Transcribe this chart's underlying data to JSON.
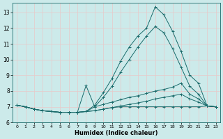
{
  "xlabel": "Humidex (Indice chaleur)",
  "bg_color": "#cceaea",
  "grid_color": "#b8d8d8",
  "line_color": "#1a6b6b",
  "xlim": [
    -0.5,
    23.5
  ],
  "ylim": [
    6,
    13.6
  ],
  "yticks": [
    6,
    7,
    8,
    9,
    10,
    11,
    12,
    13
  ],
  "xticks": [
    0,
    1,
    2,
    3,
    4,
    5,
    6,
    7,
    8,
    9,
    10,
    11,
    12,
    13,
    14,
    15,
    16,
    17,
    18,
    19,
    20,
    21,
    22,
    23
  ],
  "curves": [
    {
      "x": [
        0,
        1,
        2,
        3,
        4,
        5,
        6,
        7,
        8,
        9,
        10,
        11,
        12,
        13,
        14,
        15,
        16,
        17,
        18,
        19,
        20,
        21,
        22,
        23
      ],
      "y": [
        7.1,
        7.0,
        6.85,
        6.75,
        6.7,
        6.65,
        6.65,
        6.65,
        6.7,
        7.1,
        7.9,
        8.8,
        9.9,
        10.8,
        11.5,
        12.0,
        13.35,
        12.85,
        11.8,
        10.5,
        9.0,
        8.5,
        7.05,
        7.0
      ]
    },
    {
      "x": [
        0,
        1,
        2,
        3,
        4,
        5,
        6,
        7,
        8,
        9,
        10,
        11,
        12,
        13,
        14,
        15,
        16,
        17,
        18,
        19,
        20,
        21,
        22,
        23
      ],
      "y": [
        7.1,
        7.0,
        6.85,
        6.75,
        6.7,
        6.65,
        6.65,
        6.65,
        6.7,
        7.0,
        7.6,
        8.3,
        9.2,
        10.0,
        10.8,
        11.5,
        12.1,
        11.7,
        10.7,
        9.5,
        8.3,
        7.8,
        7.05,
        7.0
      ]
    },
    {
      "x": [
        0,
        1,
        2,
        3,
        4,
        5,
        6,
        7,
        8,
        9,
        10,
        11,
        12,
        13,
        14,
        15,
        16,
        17,
        18,
        19,
        20,
        21,
        22,
        23
      ],
      "y": [
        7.1,
        7.0,
        6.85,
        6.75,
        6.7,
        6.65,
        6.65,
        6.65,
        8.35,
        7.0,
        7.15,
        7.3,
        7.45,
        7.6,
        7.7,
        7.85,
        8.0,
        8.1,
        8.25,
        8.5,
        7.8,
        7.5,
        7.05,
        7.0
      ]
    },
    {
      "x": [
        0,
        1,
        2,
        3,
        4,
        5,
        6,
        7,
        8,
        9,
        10,
        11,
        12,
        13,
        14,
        15,
        16,
        17,
        18,
        19,
        20,
        21,
        22,
        23
      ],
      "y": [
        7.1,
        7.0,
        6.85,
        6.75,
        6.7,
        6.65,
        6.65,
        6.65,
        6.7,
        6.75,
        6.85,
        6.95,
        7.05,
        7.15,
        7.25,
        7.35,
        7.5,
        7.6,
        7.7,
        7.8,
        7.5,
        7.3,
        7.05,
        7.0
      ]
    },
    {
      "x": [
        0,
        1,
        2,
        3,
        4,
        5,
        6,
        7,
        8,
        9,
        10,
        11,
        12,
        13,
        14,
        15,
        16,
        17,
        18,
        19,
        20,
        21,
        22,
        23
      ],
      "y": [
        7.1,
        7.0,
        6.85,
        6.75,
        6.7,
        6.65,
        6.65,
        6.65,
        6.7,
        6.75,
        6.85,
        6.95,
        7.0,
        7.0,
        7.0,
        7.0,
        7.0,
        7.0,
        7.0,
        7.0,
        7.0,
        7.0,
        7.05,
        7.0
      ]
    }
  ]
}
